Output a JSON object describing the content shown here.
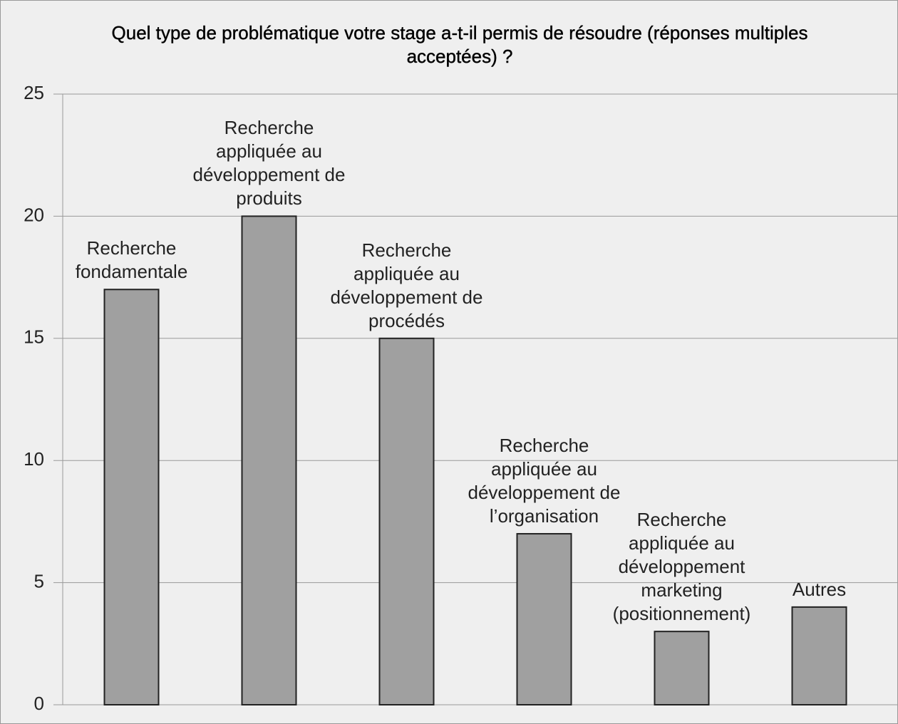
{
  "chart_data": {
    "type": "bar",
    "title": "Quel type de problématique votre stage a-t-il permis de résoudre (réponses multiples acceptées) ?",
    "categories": [
      "Recherche fondamentale",
      "Recherche appliquée au développement de produits",
      "Recherche appliquée au développement de procédés",
      "Recherche appliquée au développement de l’organisation",
      "Recherche appliquée au développement marketing (positionnement)",
      "Autres"
    ],
    "values": [
      17,
      20,
      15,
      7,
      3,
      4
    ],
    "color": "#a0a0a0",
    "ylim": [
      0,
      25
    ],
    "yticks": [
      0,
      5,
      10,
      15,
      20,
      25
    ],
    "grid": true
  }
}
